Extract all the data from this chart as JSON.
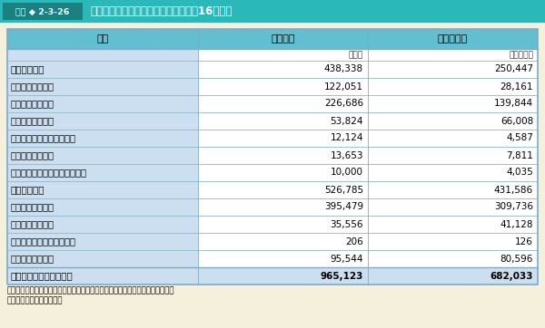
{
  "title_box_text": "図表 ◆ 2-3-26",
  "title_main_text": "日本学生支援機構の事業費総額（平成16年度）",
  "header": [
    "区分",
    "貸与人員",
    "事業費総額"
  ],
  "subheader": [
    "",
    "（人）",
    "（百万円）"
  ],
  "rows": [
    [
      "無利子奨学金",
      "438,338",
      "250,447",
      true
    ],
    [
      "　高　等　学　校",
      "122,051",
      "28,161",
      false
    ],
    [
      "　大　　　　　学",
      "226,686",
      "139,844",
      false
    ],
    [
      "　大　　学　　院",
      "53,824",
      "66,008",
      false
    ],
    [
      "　高　等　専　門　学　校",
      "12,124",
      "4,587",
      false
    ],
    [
      "　専　修　学　校",
      "13,653",
      "7,811",
      false
    ],
    [
      "　緊　急　採　用　奨　学　金",
      "10,000",
      "4,035",
      false
    ],
    [
      "有利子奨学金",
      "526,785",
      "431,586",
      true
    ],
    [
      "　大　　　　　学",
      "395,479",
      "309,736",
      false
    ],
    [
      "　大　　学　　院",
      "35,556",
      "41,128",
      false
    ],
    [
      "　高　等　専　門　学　校",
      "206",
      "126",
      false
    ],
    [
      "　専　修　学　校",
      "95,544",
      "80,596",
      false
    ]
  ],
  "footer_row": [
    "合　　　　　　　　　計",
    "965,123",
    "682,033"
  ],
  "note1": "（注）　数はそれぞれ四捨五入しているため，合計などで必ずしも一致しない。",
  "note2": "（資料）　文部科学省調べ",
  "header_bg": "#62bfcf",
  "col1_bg": "#ccdff0",
  "footer_bg": "#ccdff0",
  "title_bg": "#2ab8b8",
  "title_label_bg": "#1a8080",
  "outer_bg": "#f5f0dc",
  "border_color": "#7aaccc",
  "line_color": "#90b8c8"
}
